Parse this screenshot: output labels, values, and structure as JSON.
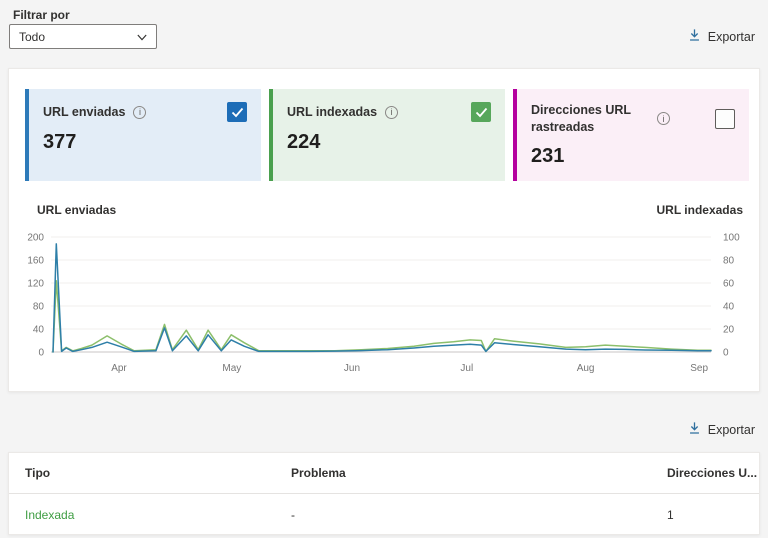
{
  "filter": {
    "label": "Filtrar por",
    "value": "Todo"
  },
  "toolbar": {
    "export_label": "Exportar"
  },
  "stats": {
    "cards": [
      {
        "title": "URL enviadas",
        "value": "377",
        "checked": true,
        "accent": "#2d7ab9",
        "bg": "#e3edf7",
        "checkbox_color": "#1d6db7"
      },
      {
        "title": "URL indexadas",
        "value": "224",
        "checked": true,
        "accent": "#4aa04e",
        "bg": "#e7f2e8",
        "checkbox_color": "#57a75b"
      },
      {
        "title": "Direcciones URL rastreadas",
        "value": "231",
        "checked": false,
        "accent": "#b4009e",
        "bg": "#fbeff7",
        "checkbox_color": "#5f5d5b"
      }
    ]
  },
  "chart_data": {
    "type": "line",
    "grid": true,
    "left_axis": {
      "title": "URL enviadas",
      "max": 200,
      "ticks": [
        0,
        40,
        80,
        120,
        160,
        200
      ]
    },
    "right_axis": {
      "title": "URL indexadas",
      "max": 100,
      "ticks": [
        0,
        20,
        40,
        60,
        80,
        100
      ]
    },
    "x_labels": [
      {
        "label": "Apr",
        "pct": 10.3
      },
      {
        "label": "May",
        "pct": 27.4
      },
      {
        "label": "Jun",
        "pct": 45.6
      },
      {
        "label": "Jul",
        "pct": 63.0
      },
      {
        "label": "Aug",
        "pct": 81.0
      },
      {
        "label": "Sep",
        "pct": 98.2
      }
    ],
    "series": [
      {
        "name": "URL enviadas",
        "axis": "left",
        "color": "#2e7fa8",
        "points": [
          [
            0.3,
            0
          ],
          [
            0.8,
            188
          ],
          [
            1.6,
            1
          ],
          [
            2.3,
            7
          ],
          [
            3.3,
            1
          ],
          [
            4.6,
            4
          ],
          [
            6.2,
            8
          ],
          [
            8.5,
            17
          ],
          [
            10.6,
            9
          ],
          [
            12.6,
            1
          ],
          [
            15.9,
            2
          ],
          [
            17.2,
            42
          ],
          [
            18.4,
            2
          ],
          [
            20.5,
            28
          ],
          [
            22.3,
            2
          ],
          [
            23.8,
            30
          ],
          [
            25.8,
            2
          ],
          [
            27.3,
            21
          ],
          [
            29.3,
            10
          ],
          [
            31.5,
            1
          ],
          [
            35,
            1
          ],
          [
            39,
            1
          ],
          [
            43,
            1.5
          ],
          [
            47,
            2.5
          ],
          [
            51,
            4
          ],
          [
            55,
            7
          ],
          [
            58,
            10
          ],
          [
            61,
            12
          ],
          [
            63.5,
            13.5
          ],
          [
            65.2,
            12
          ],
          [
            65.9,
            1
          ],
          [
            67.2,
            16
          ],
          [
            70,
            13
          ],
          [
            74,
            9
          ],
          [
            78,
            5
          ],
          [
            81,
            4
          ],
          [
            84,
            5
          ],
          [
            87,
            4.5
          ],
          [
            90,
            3.5
          ],
          [
            94,
            3
          ],
          [
            98,
            2
          ],
          [
            100,
            2
          ]
        ]
      },
      {
        "name": "URL indexadas",
        "axis": "right",
        "color": "#8cbf6b",
        "points": [
          [
            0.3,
            0
          ],
          [
            0.8,
            62
          ],
          [
            1.6,
            1
          ],
          [
            2.3,
            4
          ],
          [
            3.3,
            1
          ],
          [
            4.6,
            3
          ],
          [
            6.2,
            6
          ],
          [
            8.5,
            14
          ],
          [
            10.6,
            7
          ],
          [
            12.6,
            1
          ],
          [
            15.9,
            2
          ],
          [
            17.2,
            24
          ],
          [
            18.4,
            2
          ],
          [
            20.5,
            19
          ],
          [
            22.3,
            2
          ],
          [
            23.8,
            19
          ],
          [
            25.8,
            2
          ],
          [
            27.3,
            15
          ],
          [
            29.3,
            8
          ],
          [
            31.5,
            1
          ],
          [
            35,
            1
          ],
          [
            39,
            1
          ],
          [
            43,
            1
          ],
          [
            47,
            2
          ],
          [
            51,
            3
          ],
          [
            55,
            5
          ],
          [
            58,
            7.5
          ],
          [
            61,
            9
          ],
          [
            63.5,
            10.5
          ],
          [
            65.2,
            10
          ],
          [
            65.9,
            0.5
          ],
          [
            67.2,
            11.5
          ],
          [
            70,
            9.5
          ],
          [
            74,
            7
          ],
          [
            78,
            4
          ],
          [
            81,
            4.5
          ],
          [
            84,
            6
          ],
          [
            87,
            5
          ],
          [
            90,
            4
          ],
          [
            94,
            2.5
          ],
          [
            98,
            1.5
          ],
          [
            100,
            1.5
          ]
        ]
      }
    ]
  },
  "table": {
    "headers": [
      "Tipo",
      "Problema",
      "Direcciones U..."
    ],
    "rows": [
      {
        "tipo": "Indexada",
        "problema": "-",
        "direcciones": "1"
      }
    ]
  }
}
